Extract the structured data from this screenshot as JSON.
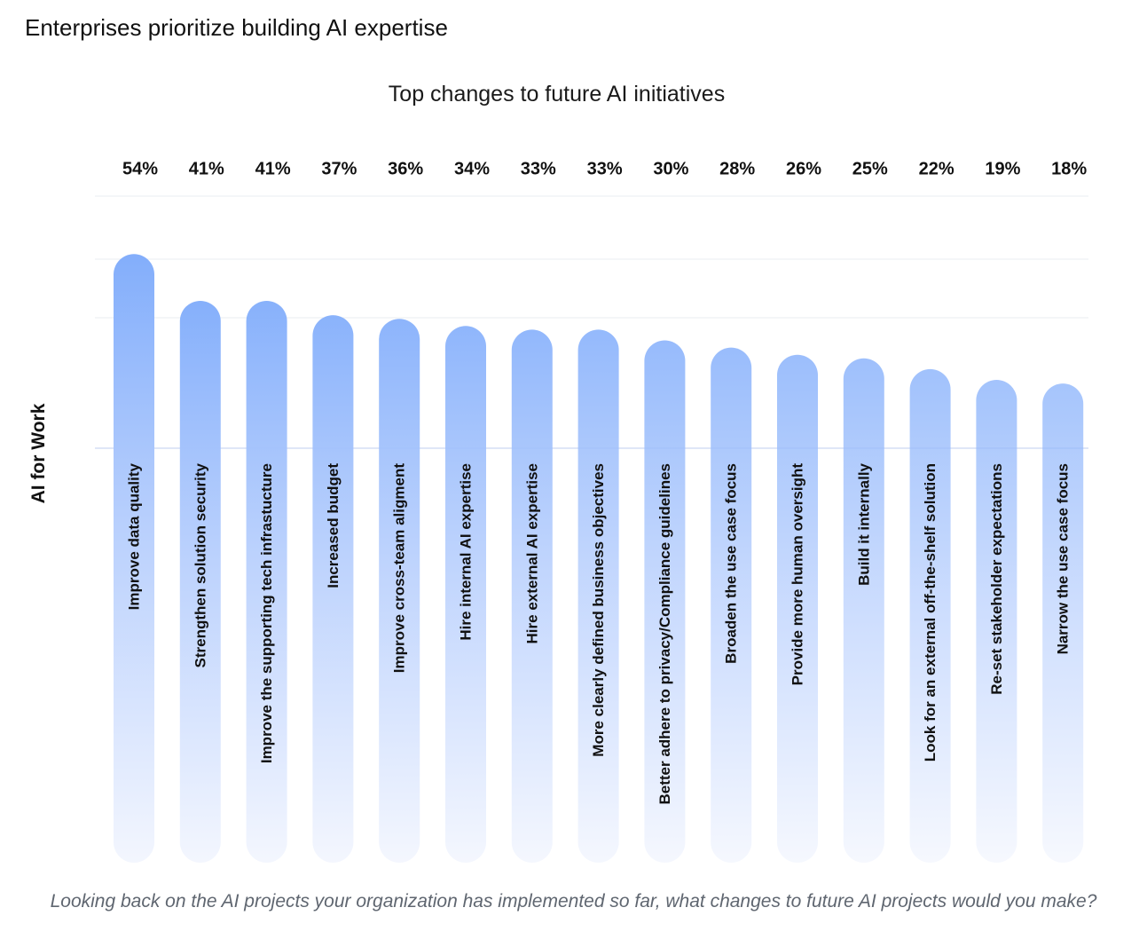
{
  "header": {
    "title": "Enterprises prioritize building AI expertise"
  },
  "caption": "Looking back on the AI projects your organization has implemented so far, what changes to future AI projects would you make?",
  "colors": {
    "top": "#83aefb",
    "bottom": "#f3f6fe",
    "grid": "#e8ecf1",
    "baseline": "#dfe6f7",
    "label": "#111111"
  },
  "chart_data": {
    "type": "bar",
    "title": "Top changes to future AI initiatives",
    "ylabel": "AI for Work",
    "xlabel": "",
    "unit": "%",
    "ylim": [
      0,
      60
    ],
    "grid": true,
    "categories": [
      "Improve data quality",
      "Strengthen solution security",
      "Improve the supporting tech infrastucture",
      "Increased budget",
      "Improve cross-team aligment",
      "Hire internal AI expertise",
      "Hire external AI expertise",
      "More clearly defined business objectives",
      "Better adhere to privacy/Compliance guidelines",
      "Broaden the use case focus",
      "Provide more human oversight",
      "Build it internally",
      "Look for an external off-the-shelf solution",
      "Re-set stakeholder expectations",
      "Narrow the use case focus"
    ],
    "value_labels": [
      "54%",
      "41%",
      "41%",
      "37%",
      "36%",
      "34%",
      "33%",
      "33%",
      "30%",
      "28%",
      "26%",
      "25%",
      "22%",
      "19%",
      "18%"
    ],
    "values": [
      54,
      41,
      41,
      37,
      36,
      34,
      33,
      33,
      30,
      28,
      26,
      25,
      22,
      19,
      18
    ]
  }
}
